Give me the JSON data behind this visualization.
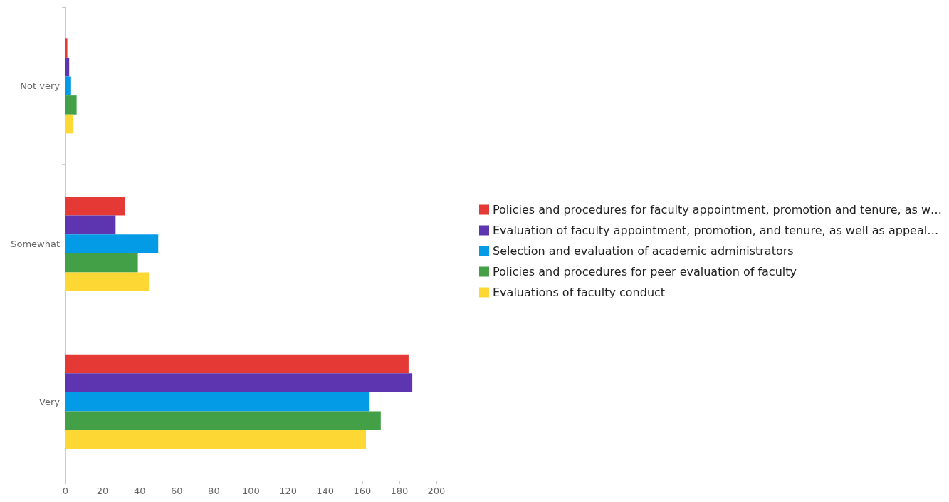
{
  "chart_data": {
    "type": "bar",
    "orientation": "horizontal",
    "categories": [
      "Not very",
      "Somewhat",
      "Very"
    ],
    "series": [
      {
        "name": "Policies and procedures for faculty appointment, promotion and tenure, as w…",
        "color": "#e53935",
        "values": [
          1,
          32,
          185
        ]
      },
      {
        "name": "Evaluation of faculty appointment, promotion, and tenure, as well as appeal…",
        "color": "#5e35b1",
        "values": [
          2,
          27,
          187
        ]
      },
      {
        "name": "Selection and evaluation of academic administrators",
        "color": "#039be5",
        "values": [
          3,
          50,
          164
        ]
      },
      {
        "name": "Policies and procedures for peer evaluation of faculty",
        "color": "#43a047",
        "values": [
          6,
          39,
          170
        ]
      },
      {
        "name": "Evaluations of faculty conduct",
        "color": "#fdd835",
        "values": [
          4,
          45,
          162
        ]
      }
    ],
    "xlim": [
      0,
      205
    ],
    "xticks": [
      0,
      20,
      40,
      60,
      80,
      100,
      120,
      140,
      160,
      180,
      200
    ],
    "grid": false,
    "legend": "right"
  }
}
